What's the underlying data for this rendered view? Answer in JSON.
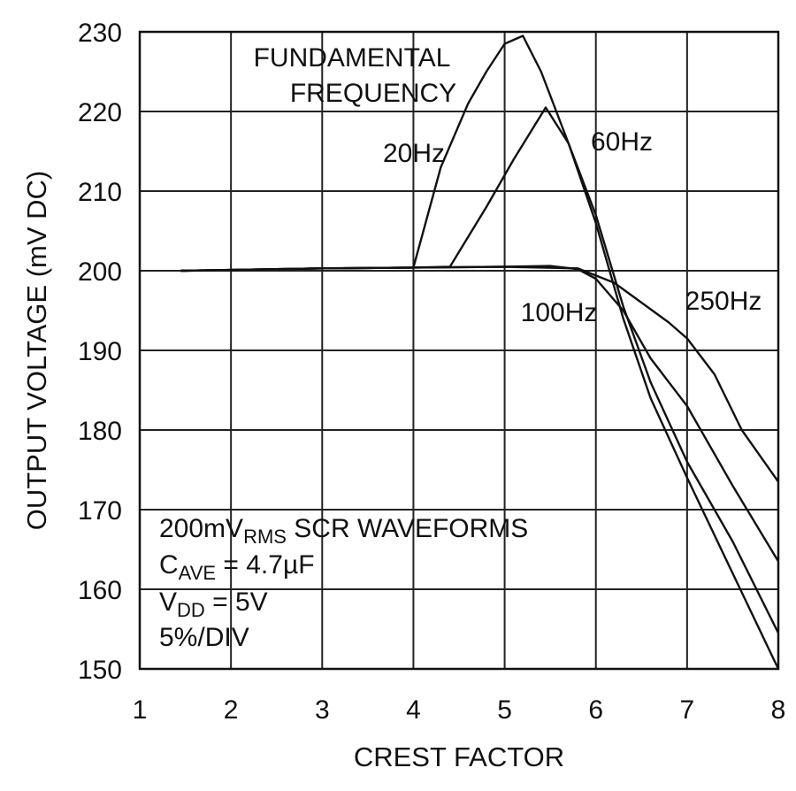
{
  "chart_data": {
    "type": "line",
    "title": "",
    "xlabel": "CREST FACTOR",
    "ylabel": "OUTPUT VOLTAGE (mV DC)",
    "xlim": [
      1,
      8
    ],
    "ylim": [
      150,
      230
    ],
    "x_ticks": [
      "1",
      "2",
      "3",
      "4",
      "5",
      "6",
      "7",
      "8"
    ],
    "y_ticks": [
      "150",
      "160",
      "170",
      "180",
      "190",
      "200",
      "210",
      "220",
      "230"
    ],
    "grid": true,
    "legend_title": {
      "line1": "FUNDAMENTAL",
      "line2": "FREQUENCY"
    },
    "conditions": [
      {
        "main": "200mV",
        "sub": "RMS",
        "rest": " SCR WAVEFORMS"
      },
      {
        "main": "C",
        "sub": "AVE",
        "rest": " = 4.7µF"
      },
      {
        "main": "V",
        "sub": "DD",
        "rest": " = 5V"
      },
      {
        "main": "5%/DIV",
        "sub": "",
        "rest": ""
      }
    ],
    "series": [
      {
        "name": "20Hz",
        "x": [
          1.45,
          2.0,
          3.0,
          4.0,
          4.3,
          4.6,
          4.8,
          5.0,
          5.2,
          5.4,
          5.7,
          6.0,
          6.3,
          6.6,
          7.0,
          7.5,
          8.0
        ],
        "y": [
          200.0,
          200.1,
          200.3,
          200.4,
          213.0,
          221.0,
          225.0,
          228.5,
          229.5,
          225.0,
          216.0,
          206.0,
          194.0,
          184.0,
          174.0,
          162.0,
          150.0
        ]
      },
      {
        "name": "60Hz",
        "x": [
          1.45,
          2.0,
          3.0,
          4.0,
          4.4,
          4.8,
          5.1,
          5.45,
          5.7,
          6.0,
          6.3,
          6.6,
          7.0,
          7.5,
          8.0
        ],
        "y": [
          200.0,
          200.1,
          200.3,
          200.4,
          200.5,
          208.0,
          214.0,
          220.5,
          216.0,
          207.0,
          195.5,
          186.0,
          176.0,
          166.0,
          154.5
        ]
      },
      {
        "name": "100Hz",
        "x": [
          1.45,
          2.0,
          3.0,
          4.0,
          5.0,
          5.5,
          5.8,
          6.0,
          6.3,
          6.6,
          7.0,
          7.5,
          8.0
        ],
        "y": [
          200.0,
          200.1,
          200.3,
          200.4,
          200.5,
          200.6,
          200.2,
          199.0,
          195.0,
          189.0,
          183.0,
          173.0,
          163.5
        ]
      },
      {
        "name": "250Hz",
        "x": [
          1.45,
          2.0,
          3.0,
          4.0,
          5.0,
          5.8,
          6.2,
          6.5,
          6.8,
          7.0,
          7.3,
          7.6,
          8.0
        ],
        "y": [
          200.0,
          200.1,
          200.3,
          200.4,
          200.5,
          200.3,
          198.5,
          196.0,
          193.5,
          191.5,
          187.0,
          180.0,
          173.5
        ]
      }
    ]
  }
}
